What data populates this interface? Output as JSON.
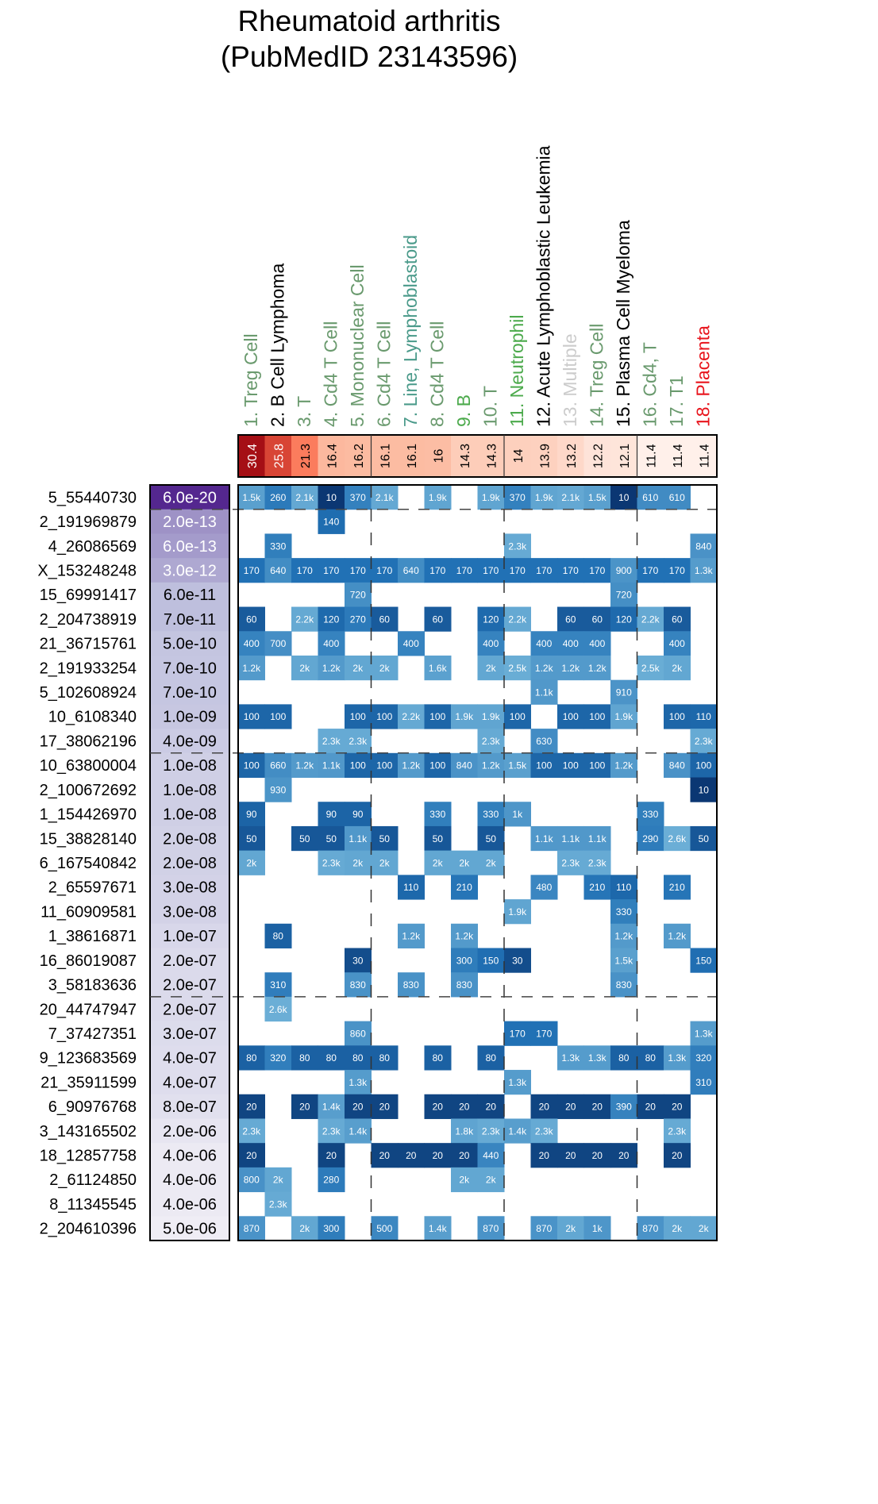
{
  "chart_data": {
    "type": "heatmap",
    "title": "Rheumatoid arthritis",
    "subtitle": "(PubMedID 23143596)",
    "columns": [
      {
        "label": "1. Treg Cell",
        "color": "#6a9a6e",
        "score": "30.4"
      },
      {
        "label": "2. B Cell Lymphoma",
        "color": "#000000",
        "score": "25.8"
      },
      {
        "label": "3. T",
        "color": "#6a9a6e",
        "score": "21.3"
      },
      {
        "label": "4. Cd4 T Cell",
        "color": "#6a9a6e",
        "score": "16.4"
      },
      {
        "label": "5. Mononuclear Cell",
        "color": "#6a9a6e",
        "score": "16.2"
      },
      {
        "label": "6. Cd4 T Cell",
        "color": "#6a9a6e",
        "score": "16.1"
      },
      {
        "label": "7. Line, Lymphoblastoid",
        "color": "#4a9a8a",
        "score": "16.1"
      },
      {
        "label": "8. Cd4 T Cell",
        "color": "#6a9a6e",
        "score": "16"
      },
      {
        "label": "9. B",
        "color": "#4caa4c",
        "score": "14.3"
      },
      {
        "label": "10. T",
        "color": "#6a9a6e",
        "score": "14.3"
      },
      {
        "label": "11. Neutrophil",
        "color": "#4caa4c",
        "score": "14"
      },
      {
        "label": "12. Acute Lymphoblastic Leukemia",
        "color": "#000000",
        "score": "13.9"
      },
      {
        "label": "13. Multiple",
        "color": "#cccccc",
        "score": "13.2"
      },
      {
        "label": "14. Treg Cell",
        "color": "#6a9a6e",
        "score": "12.2"
      },
      {
        "label": "15. Plasma Cell Myeloma",
        "color": "#000000",
        "score": "12.1"
      },
      {
        "label": "16. Cd4, T",
        "color": "#6a9a6e",
        "score": "11.4"
      },
      {
        "label": "17. T1",
        "color": "#6a9a6e",
        "score": "11.4"
      },
      {
        "label": "18. Placenta",
        "color": "#e8141c",
        "score": "11.4"
      }
    ],
    "rows": [
      {
        "snp": "5_55440730",
        "pvalue": "6.0e-20",
        "cells": [
          "1.5k",
          "260",
          "2.1k",
          "10",
          "370",
          "2.1k",
          "",
          "1.9k",
          "",
          "1.9k",
          "370",
          "1.9k",
          "2.1k",
          "1.5k",
          "10",
          "610",
          "610",
          ""
        ]
      },
      {
        "snp": "2_191969879",
        "pvalue": "2.0e-13",
        "cells": [
          "",
          "",
          "",
          "140",
          "",
          "",
          "",
          "",
          "",
          "",
          "",
          "",
          "",
          "",
          "",
          "",
          "",
          ""
        ]
      },
      {
        "snp": "4_26086569",
        "pvalue": "6.0e-13",
        "cells": [
          "",
          "330",
          "",
          "",
          "",
          "",
          "",
          "",
          "",
          "",
          "2.3k",
          "",
          "",
          "",
          "",
          "",
          "",
          "840"
        ]
      },
      {
        "snp": "X_153248248",
        "pvalue": "3.0e-12",
        "cells": [
          "170",
          "640",
          "170",
          "170",
          "170",
          "170",
          "640",
          "170",
          "170",
          "170",
          "170",
          "170",
          "170",
          "170",
          "900",
          "170",
          "170",
          "1.3k"
        ]
      },
      {
        "snp": "15_69991417",
        "pvalue": "6.0e-11",
        "cells": [
          "",
          "",
          "",
          "",
          "720",
          "",
          "",
          "",
          "",
          "",
          "",
          "",
          "",
          "",
          "720",
          "",
          "",
          ""
        ]
      },
      {
        "snp": "2_204738919",
        "pvalue": "7.0e-11",
        "cells": [
          "60",
          "",
          "2.2k",
          "120",
          "270",
          "60",
          "",
          "60",
          "",
          "120",
          "2.2k",
          "",
          "60",
          "60",
          "120",
          "2.2k",
          "60",
          ""
        ]
      },
      {
        "snp": "21_36715761",
        "pvalue": "5.0e-10",
        "cells": [
          "400",
          "700",
          "",
          "400",
          "",
          "",
          "400",
          "",
          "",
          "400",
          "",
          "400",
          "400",
          "400",
          "",
          "",
          "400",
          ""
        ]
      },
      {
        "snp": "2_191933254",
        "pvalue": "7.0e-10",
        "cells": [
          "1.2k",
          "",
          "2k",
          "1.2k",
          "2k",
          "2k",
          "",
          "1.6k",
          "",
          "2k",
          "2.5k",
          "1.2k",
          "1.2k",
          "1.2k",
          "",
          "2.5k",
          "2k",
          ""
        ]
      },
      {
        "snp": "5_102608924",
        "pvalue": "7.0e-10",
        "cells": [
          "",
          "",
          "",
          "",
          "",
          "",
          "",
          "",
          "",
          "",
          "",
          "1.1k",
          "",
          "",
          "910",
          "",
          "",
          ""
        ]
      },
      {
        "snp": "10_6108340",
        "pvalue": "1.0e-09",
        "cells": [
          "100",
          "100",
          "",
          "",
          "100",
          "100",
          "2.2k",
          "100",
          "1.9k",
          "1.9k",
          "100",
          "",
          "100",
          "100",
          "1.9k",
          "",
          "100",
          "110"
        ]
      },
      {
        "snp": "17_38062196",
        "pvalue": "4.0e-09",
        "cells": [
          "",
          "",
          "",
          "2.3k",
          "2.3k",
          "",
          "",
          "",
          "",
          "2.3k",
          "",
          "630",
          "",
          "",
          "",
          "",
          "",
          "2.3k"
        ]
      },
      {
        "snp": "10_63800004",
        "pvalue": "1.0e-08",
        "cells": [
          "100",
          "660",
          "1.2k",
          "1.1k",
          "100",
          "100",
          "1.2k",
          "100",
          "840",
          "1.2k",
          "1.5k",
          "100",
          "100",
          "100",
          "1.2k",
          "",
          "840",
          "100"
        ]
      },
      {
        "snp": "2_100672692",
        "pvalue": "1.0e-08",
        "cells": [
          "",
          "930",
          "",
          "",
          "",
          "",
          "",
          "",
          "",
          "",
          "",
          "",
          "",
          "",
          "",
          "",
          "",
          "10"
        ]
      },
      {
        "snp": "1_154426970",
        "pvalue": "1.0e-08",
        "cells": [
          "90",
          "",
          "",
          "90",
          "90",
          "",
          "",
          "330",
          "",
          "330",
          "1k",
          "",
          "",
          "",
          "",
          "330",
          "",
          ""
        ]
      },
      {
        "snp": "15_38828140",
        "pvalue": "2.0e-08",
        "cells": [
          "50",
          "",
          "50",
          "50",
          "1.1k",
          "50",
          "",
          "50",
          "",
          "50",
          "",
          "1.1k",
          "1.1k",
          "1.1k",
          "",
          "290",
          "2.6k",
          "50"
        ]
      },
      {
        "snp": "6_167540842",
        "pvalue": "2.0e-08",
        "cells": [
          "2k",
          "",
          "",
          "2.3k",
          "2k",
          "2k",
          "",
          "2k",
          "2k",
          "2k",
          "",
          "",
          "2.3k",
          "2.3k",
          "",
          "",
          "",
          ""
        ]
      },
      {
        "snp": "2_65597671",
        "pvalue": "3.0e-08",
        "cells": [
          "",
          "",
          "",
          "",
          "",
          "",
          "110",
          "",
          "210",
          "",
          "",
          "480",
          "",
          "210",
          "110",
          "",
          "210",
          ""
        ]
      },
      {
        "snp": "11_60909581",
        "pvalue": "3.0e-08",
        "cells": [
          "",
          "",
          "",
          "",
          "",
          "",
          "",
          "",
          "",
          "",
          "1.9k",
          "",
          "",
          "",
          "330",
          "",
          "",
          ""
        ]
      },
      {
        "snp": "1_38616871",
        "pvalue": "1.0e-07",
        "cells": [
          "",
          "80",
          "",
          "",
          "",
          "",
          "1.2k",
          "",
          "1.2k",
          "",
          "",
          "",
          "",
          "",
          "1.2k",
          "",
          "1.2k",
          ""
        ]
      },
      {
        "snp": "16_86019087",
        "pvalue": "2.0e-07",
        "cells": [
          "",
          "",
          "",
          "",
          "30",
          "",
          "",
          "",
          "300",
          "150",
          "30",
          "",
          "",
          "",
          "1.5k",
          "",
          "",
          "150"
        ]
      },
      {
        "snp": "3_58183636",
        "pvalue": "2.0e-07",
        "cells": [
          "",
          "310",
          "",
          "",
          "830",
          "",
          "830",
          "",
          "830",
          "",
          "",
          "",
          "",
          "",
          "830",
          "",
          "",
          ""
        ]
      },
      {
        "snp": "20_44747947",
        "pvalue": "2.0e-07",
        "cells": [
          "",
          "2.6k",
          "",
          "",
          "",
          "",
          "",
          "",
          "",
          "",
          "",
          "",
          "",
          "",
          "",
          "",
          "",
          ""
        ]
      },
      {
        "snp": "7_37427351",
        "pvalue": "3.0e-07",
        "cells": [
          "",
          "",
          "",
          "",
          "860",
          "",
          "",
          "",
          "",
          "",
          "170",
          "170",
          "",
          "",
          "",
          "",
          "",
          "1.3k"
        ]
      },
      {
        "snp": "9_123683569",
        "pvalue": "4.0e-07",
        "cells": [
          "80",
          "320",
          "80",
          "80",
          "80",
          "80",
          "",
          "80",
          "",
          "80",
          "",
          "",
          "1.3k",
          "1.3k",
          "80",
          "80",
          "1.3k",
          "320"
        ]
      },
      {
        "snp": "21_35911599",
        "pvalue": "4.0e-07",
        "cells": [
          "",
          "",
          "",
          "",
          "1.3k",
          "",
          "",
          "",
          "",
          "",
          "1.3k",
          "",
          "",
          "",
          "",
          "",
          "",
          "310"
        ]
      },
      {
        "snp": "6_90976768",
        "pvalue": "8.0e-07",
        "cells": [
          "20",
          "",
          "20",
          "1.4k",
          "20",
          "20",
          "",
          "20",
          "20",
          "20",
          "",
          "20",
          "20",
          "20",
          "390",
          "20",
          "20",
          ""
        ]
      },
      {
        "snp": "3_143165502",
        "pvalue": "2.0e-06",
        "cells": [
          "2.3k",
          "",
          "",
          "2.3k",
          "1.4k",
          "",
          "",
          "",
          "1.8k",
          "2.3k",
          "1.4k",
          "2.3k",
          "",
          "",
          "",
          "",
          "2.3k",
          ""
        ]
      },
      {
        "snp": "18_12857758",
        "pvalue": "4.0e-06",
        "cells": [
          "20",
          "",
          "",
          "20",
          "",
          "20",
          "20",
          "20",
          "20",
          "440",
          "",
          "20",
          "20",
          "20",
          "20",
          "",
          "20",
          ""
        ]
      },
      {
        "snp": "2_61124850",
        "pvalue": "4.0e-06",
        "cells": [
          "800",
          "2k",
          "",
          "280",
          "",
          "",
          "",
          "",
          "2k",
          "2k",
          "",
          "",
          "",
          "",
          "",
          "",
          "",
          ""
        ]
      },
      {
        "snp": "8_11345545",
        "pvalue": "4.0e-06",
        "cells": [
          "",
          "2.3k",
          "",
          "",
          "",
          "",
          "",
          "",
          "",
          "",
          "",
          "",
          "",
          "",
          "",
          "",
          "",
          ""
        ]
      },
      {
        "snp": "2_204610396",
        "pvalue": "5.0e-06",
        "cells": [
          "870",
          "",
          "2k",
          "300",
          "",
          "500",
          "",
          "1.4k",
          "",
          "870",
          "",
          "870",
          "2k",
          "1k",
          "",
          "870",
          "2k",
          "2k"
        ]
      }
    ],
    "column_group_breaks_after": [
      5,
      10,
      15
    ],
    "row_group_breaks_after": [
      1,
      11,
      21
    ],
    "score_colorscale": [
      "#fff0ea",
      "#fcbba1",
      "#fb6a4a",
      "#a50f15"
    ],
    "pvalue_colorscale": [
      "#efedf5",
      "#bcbddc",
      "#54278f"
    ],
    "cell_colorscale": [
      "#6baed6",
      "#2171b5",
      "#08306b"
    ]
  }
}
